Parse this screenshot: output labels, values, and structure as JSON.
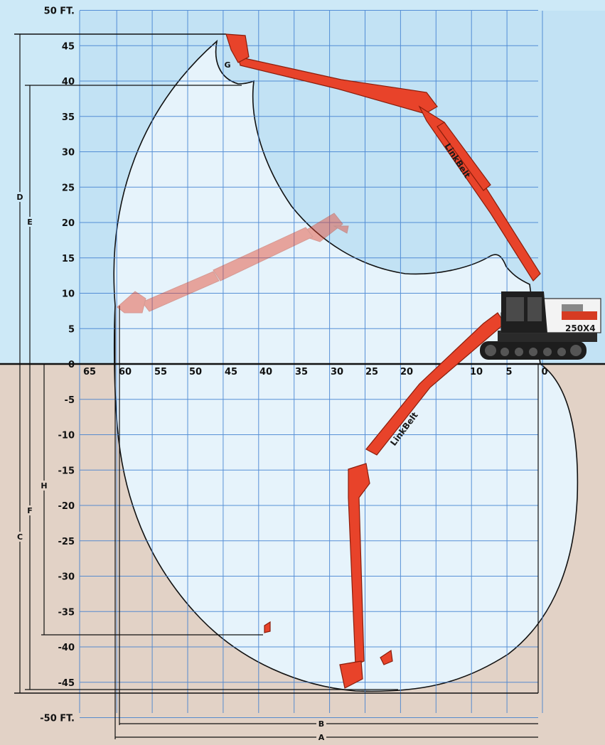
{
  "diagram": {
    "y_axis": {
      "ticks": [
        {
          "value": 50,
          "label": "50 FT."
        },
        {
          "value": 45,
          "label": "45"
        },
        {
          "value": 40,
          "label": "40"
        },
        {
          "value": 35,
          "label": "35"
        },
        {
          "value": 30,
          "label": "30"
        },
        {
          "value": 25,
          "label": "25"
        },
        {
          "value": 20,
          "label": "20"
        },
        {
          "value": 15,
          "label": "15"
        },
        {
          "value": 10,
          "label": "10"
        },
        {
          "value": 5,
          "label": "5"
        },
        {
          "value": 0,
          "label": "0"
        },
        {
          "value": -5,
          "label": "-5"
        },
        {
          "value": -10,
          "label": "-10"
        },
        {
          "value": -15,
          "label": "-15"
        },
        {
          "value": -20,
          "label": "-20"
        },
        {
          "value": -25,
          "label": "-25"
        },
        {
          "value": -30,
          "label": "-30"
        },
        {
          "value": -35,
          "label": "-35"
        },
        {
          "value": -40,
          "label": "-40"
        },
        {
          "value": -45,
          "label": "-45"
        },
        {
          "value": -50,
          "label": "-50 FT."
        }
      ]
    },
    "x_axis": {
      "ticks": [
        {
          "value": 65,
          "label": "65"
        },
        {
          "value": 60,
          "label": "60"
        },
        {
          "value": 55,
          "label": "55"
        },
        {
          "value": 50,
          "label": "50"
        },
        {
          "value": 45,
          "label": "45"
        },
        {
          "value": 40,
          "label": "40"
        },
        {
          "value": 35,
          "label": "35"
        },
        {
          "value": 30,
          "label": "30"
        },
        {
          "value": 25,
          "label": "25"
        },
        {
          "value": 20,
          "label": "20"
        },
        {
          "value": 15,
          "label": "15"
        },
        {
          "value": 10,
          "label": "10"
        },
        {
          "value": 5,
          "label": "5"
        },
        {
          "value": 0,
          "label": "0"
        }
      ]
    },
    "dimensions": {
      "A": "A",
      "B": "B",
      "C": "C",
      "D": "D",
      "E": "E",
      "F": "F",
      "G": "G",
      "H": "H"
    },
    "brand": {
      "boom_text": "LinkBelt",
      "model_text": "250X4"
    },
    "colors": {
      "sky": "#cde9f7",
      "ground": "#e2d2c6",
      "grid": "#3f7fd0",
      "envelope": "#e6f3fb",
      "arm": "#e8432a"
    }
  }
}
